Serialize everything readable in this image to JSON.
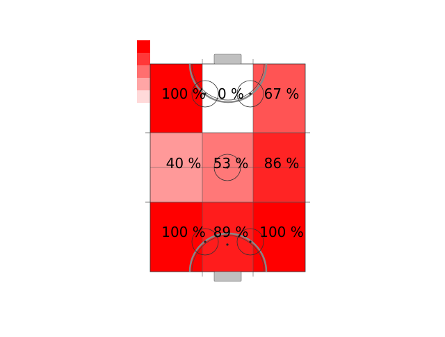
{
  "chart_data": {
    "type": "heatmap",
    "title": "",
    "xlabel": "",
    "ylabel": "",
    "value_format": "{v} %",
    "cells": [
      [
        100,
        0,
        67
      ],
      [
        40,
        53,
        86
      ],
      [
        100,
        89,
        100
      ]
    ],
    "color_min": "#ffffff",
    "color_max": "#ff0000",
    "colorbar_swatches": [
      "#ff0000",
      "#ff3838",
      "#ff6f6f",
      "#ffa5a5",
      "#ffd9d9"
    ],
    "pitch_line_color": "#333333",
    "goal_color": "#c0c0c0",
    "grid": false,
    "legend": "top-left"
  }
}
